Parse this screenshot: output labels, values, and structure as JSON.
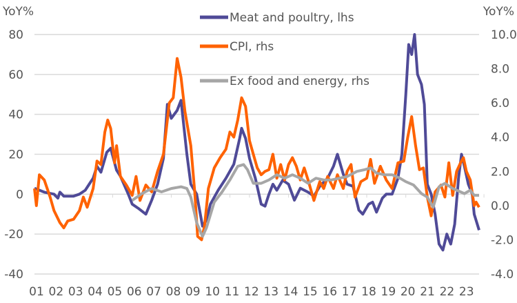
{
  "chart_data": {
    "type": "line",
    "title": "",
    "ylabel_left": "YoY%",
    "ylabel_right": "YoY%",
    "ylim_left": [
      -40,
      80
    ],
    "ylim_right": [
      -4.0,
      10.0
    ],
    "yticks_left": [
      "80",
      "60",
      "40",
      "20",
      "0",
      "-20",
      "-40"
    ],
    "yticks_left_values": [
      80,
      60,
      40,
      20,
      0,
      -20,
      -40
    ],
    "yticks_right": [
      "10.0",
      "8.0",
      "6.0",
      "4.0",
      "2.0",
      "0.0",
      "-2.0",
      "-4.0"
    ],
    "yticks_right_values": [
      10,
      8,
      6,
      4,
      2,
      0,
      -2,
      -4
    ],
    "xticks": [
      "01",
      "02",
      "03",
      "04",
      "05",
      "06",
      "07",
      "08",
      "09",
      "10",
      "11",
      "12",
      "13",
      "14",
      "15",
      "16",
      "17",
      "18",
      "19",
      "20",
      "21",
      "22",
      "23"
    ],
    "xlim": [
      2001.0,
      2023.75
    ],
    "grid": true,
    "legend_position": "top-center",
    "series": [
      {
        "name": "Meat and poultry, lhs",
        "axis": "left",
        "color": "#4f4a97",
        "points": [
          [
            2001.0,
            3
          ],
          [
            2001.5,
            1
          ],
          [
            2002.0,
            0
          ],
          [
            2002.2,
            -2
          ],
          [
            2002.3,
            1
          ],
          [
            2002.5,
            -1
          ],
          [
            2003.0,
            -1
          ],
          [
            2003.3,
            0
          ],
          [
            2003.6,
            2
          ],
          [
            2004.0,
            8
          ],
          [
            2004.2,
            14
          ],
          [
            2004.4,
            11
          ],
          [
            2004.7,
            21
          ],
          [
            2004.9,
            23
          ],
          [
            2005.2,
            12
          ],
          [
            2005.4,
            9
          ],
          [
            2005.8,
            0
          ],
          [
            2006.0,
            -5
          ],
          [
            2006.3,
            -7
          ],
          [
            2006.7,
            -10
          ],
          [
            2007.0,
            -3
          ],
          [
            2007.3,
            5
          ],
          [
            2007.6,
            18
          ],
          [
            2007.8,
            45
          ],
          [
            2008.0,
            38
          ],
          [
            2008.3,
            42
          ],
          [
            2008.5,
            47
          ],
          [
            2008.8,
            20
          ],
          [
            2009.0,
            5
          ],
          [
            2009.3,
            0
          ],
          [
            2009.6,
            -16
          ],
          [
            2009.8,
            -13
          ],
          [
            2010.0,
            -5
          ],
          [
            2010.4,
            2
          ],
          [
            2010.8,
            8
          ],
          [
            2011.2,
            15
          ],
          [
            2011.5,
            28
          ],
          [
            2011.6,
            33
          ],
          [
            2011.8,
            28
          ],
          [
            2012.0,
            18
          ],
          [
            2012.3,
            8
          ],
          [
            2012.6,
            -5
          ],
          [
            2012.8,
            -6
          ],
          [
            2013.0,
            0
          ],
          [
            2013.2,
            5
          ],
          [
            2013.4,
            2
          ],
          [
            2013.7,
            7
          ],
          [
            2014.0,
            5
          ],
          [
            2014.3,
            -3
          ],
          [
            2014.6,
            3
          ],
          [
            2015.0,
            1
          ],
          [
            2015.3,
            -1
          ],
          [
            2015.6,
            4
          ],
          [
            2016.0,
            8
          ],
          [
            2016.3,
            14
          ],
          [
            2016.5,
            20
          ],
          [
            2016.8,
            10
          ],
          [
            2017.0,
            5
          ],
          [
            2017.3,
            4
          ],
          [
            2017.6,
            -8
          ],
          [
            2017.8,
            -10
          ],
          [
            2018.1,
            -5
          ],
          [
            2018.3,
            -4
          ],
          [
            2018.5,
            -9
          ],
          [
            2018.8,
            -2
          ],
          [
            2019.0,
            0
          ],
          [
            2019.3,
            0
          ],
          [
            2019.6,
            8
          ],
          [
            2019.8,
            20
          ],
          [
            2020.0,
            50
          ],
          [
            2020.15,
            75
          ],
          [
            2020.3,
            70
          ],
          [
            2020.45,
            80
          ],
          [
            2020.6,
            60
          ],
          [
            2020.8,
            55
          ],
          [
            2020.95,
            45
          ],
          [
            2021.1,
            5
          ],
          [
            2021.3,
            0
          ],
          [
            2021.5,
            -10
          ],
          [
            2021.7,
            -25
          ],
          [
            2021.9,
            -28
          ],
          [
            2022.1,
            -20
          ],
          [
            2022.3,
            -25
          ],
          [
            2022.5,
            -15
          ],
          [
            2022.7,
            8
          ],
          [
            2022.85,
            20
          ],
          [
            2023.0,
            14
          ],
          [
            2023.2,
            5
          ],
          [
            2023.4,
            0
          ],
          [
            2023.5,
            -10
          ],
          [
            2023.75,
            -18
          ]
        ]
      },
      {
        "name": "CPI, rhs",
        "axis": "right",
        "color": "#ff6200",
        "points": [
          [
            2001.0,
            1.0
          ],
          [
            2001.1,
            0.0
          ],
          [
            2001.25,
            1.8
          ],
          [
            2001.5,
            1.5
          ],
          [
            2001.8,
            0.5
          ],
          [
            2002.0,
            -0.3
          ],
          [
            2002.3,
            -1.0
          ],
          [
            2002.5,
            -1.3
          ],
          [
            2002.7,
            -0.9
          ],
          [
            2003.0,
            -0.8
          ],
          [
            2003.3,
            -0.3
          ],
          [
            2003.5,
            0.5
          ],
          [
            2003.7,
            -0.1
          ],
          [
            2004.0,
            1.0
          ],
          [
            2004.2,
            2.6
          ],
          [
            2004.4,
            2.4
          ],
          [
            2004.6,
            4.3
          ],
          [
            2004.75,
            5.0
          ],
          [
            2004.9,
            4.5
          ],
          [
            2005.1,
            2.5
          ],
          [
            2005.2,
            3.5
          ],
          [
            2005.4,
            1.7
          ],
          [
            2005.7,
            1.2
          ],
          [
            2006.0,
            0.6
          ],
          [
            2006.2,
            1.7
          ],
          [
            2006.4,
            0.3
          ],
          [
            2006.7,
            1.2
          ],
          [
            2007.0,
            0.8
          ],
          [
            2007.3,
            2.0
          ],
          [
            2007.6,
            3.0
          ],
          [
            2007.9,
            6.0
          ],
          [
            2008.1,
            6.3
          ],
          [
            2008.3,
            8.6
          ],
          [
            2008.5,
            7.5
          ],
          [
            2008.7,
            5.5
          ],
          [
            2009.0,
            3.5
          ],
          [
            2009.2,
            0.8
          ],
          [
            2009.35,
            -1.8
          ],
          [
            2009.55,
            -2.0
          ],
          [
            2009.7,
            -1.2
          ],
          [
            2009.9,
            1.0
          ],
          [
            2010.2,
            2.2
          ],
          [
            2010.5,
            2.8
          ],
          [
            2010.8,
            3.3
          ],
          [
            2011.0,
            4.3
          ],
          [
            2011.2,
            4.0
          ],
          [
            2011.4,
            5.0
          ],
          [
            2011.6,
            6.3
          ],
          [
            2011.8,
            5.8
          ],
          [
            2012.0,
            3.8
          ],
          [
            2012.2,
            3.0
          ],
          [
            2012.4,
            2.2
          ],
          [
            2012.6,
            1.8
          ],
          [
            2012.8,
            2.0
          ],
          [
            2013.0,
            2.1
          ],
          [
            2013.2,
            3.0
          ],
          [
            2013.4,
            1.6
          ],
          [
            2013.6,
            2.4
          ],
          [
            2013.8,
            1.5
          ],
          [
            2014.0,
            2.4
          ],
          [
            2014.2,
            2.8
          ],
          [
            2014.4,
            2.3
          ],
          [
            2014.6,
            1.5
          ],
          [
            2014.8,
            2.2
          ],
          [
            2015.0,
            1.5
          ],
          [
            2015.3,
            0.3
          ],
          [
            2015.6,
            1.4
          ],
          [
            2015.8,
            1.0
          ],
          [
            2016.0,
            1.7
          ],
          [
            2016.3,
            1.0
          ],
          [
            2016.5,
            1.8
          ],
          [
            2016.8,
            1.0
          ],
          [
            2017.0,
            2.0
          ],
          [
            2017.2,
            2.4
          ],
          [
            2017.4,
            0.5
          ],
          [
            2017.7,
            1.4
          ],
          [
            2018.0,
            1.6
          ],
          [
            2018.2,
            2.7
          ],
          [
            2018.4,
            1.3
          ],
          [
            2018.7,
            2.3
          ],
          [
            2019.0,
            1.5
          ],
          [
            2019.3,
            1.0
          ],
          [
            2019.6,
            2.5
          ],
          [
            2019.9,
            2.6
          ],
          [
            2020.1,
            4.0
          ],
          [
            2020.3,
            5.2
          ],
          [
            2020.5,
            3.5
          ],
          [
            2020.7,
            2.1
          ],
          [
            2020.9,
            2.2
          ],
          [
            2021.1,
            0.5
          ],
          [
            2021.3,
            -0.6
          ],
          [
            2021.5,
            0.8
          ],
          [
            2021.8,
            1.2
          ],
          [
            2022.0,
            0.5
          ],
          [
            2022.2,
            2.5
          ],
          [
            2022.4,
            0.6
          ],
          [
            2022.6,
            2.0
          ],
          [
            2022.8,
            2.5
          ],
          [
            2022.95,
            2.8
          ],
          [
            2023.1,
            2.0
          ],
          [
            2023.3,
            1.5
          ],
          [
            2023.5,
            0.0
          ],
          [
            2023.6,
            0.2
          ],
          [
            2023.75,
            -0.1
          ]
        ]
      },
      {
        "name": "Ex food and energy, rhs",
        "axis": "right",
        "color": "#a6a6a6",
        "points": [
          [
            2006.0,
            0.3
          ],
          [
            2006.5,
            0.7
          ],
          [
            2007.0,
            1.0
          ],
          [
            2007.5,
            0.8
          ],
          [
            2008.0,
            1.0
          ],
          [
            2008.5,
            1.1
          ],
          [
            2008.8,
            1.0
          ],
          [
            2009.0,
            0.5
          ],
          [
            2009.3,
            -1.0
          ],
          [
            2009.6,
            -1.8
          ],
          [
            2009.8,
            -1.3
          ],
          [
            2010.2,
            0.2
          ],
          [
            2010.6,
            0.8
          ],
          [
            2011.0,
            1.5
          ],
          [
            2011.4,
            2.3
          ],
          [
            2011.7,
            2.4
          ],
          [
            2011.9,
            2.1
          ],
          [
            2012.2,
            1.3
          ],
          [
            2012.6,
            1.3
          ],
          [
            2013.0,
            1.5
          ],
          [
            2013.4,
            1.8
          ],
          [
            2013.8,
            1.6
          ],
          [
            2014.2,
            1.8
          ],
          [
            2014.6,
            1.6
          ],
          [
            2015.0,
            1.3
          ],
          [
            2015.4,
            1.6
          ],
          [
            2015.8,
            1.5
          ],
          [
            2016.2,
            1.5
          ],
          [
            2016.6,
            1.6
          ],
          [
            2017.0,
            1.7
          ],
          [
            2017.5,
            2.0
          ],
          [
            2017.9,
            2.1
          ],
          [
            2018.2,
            2.2
          ],
          [
            2018.5,
            1.9
          ],
          [
            2018.9,
            1.8
          ],
          [
            2019.3,
            1.8
          ],
          [
            2019.7,
            1.6
          ],
          [
            2020.0,
            1.4
          ],
          [
            2020.4,
            1.2
          ],
          [
            2020.8,
            0.7
          ],
          [
            2021.1,
            0.5
          ],
          [
            2021.4,
            -0.1
          ],
          [
            2021.7,
            1.1
          ],
          [
            2022.0,
            1.3
          ],
          [
            2022.4,
            1.0
          ],
          [
            2022.8,
            0.8
          ],
          [
            2023.0,
            0.7
          ],
          [
            2023.3,
            0.9
          ],
          [
            2023.5,
            0.6
          ],
          [
            2023.75,
            0.6
          ]
        ]
      }
    ]
  }
}
